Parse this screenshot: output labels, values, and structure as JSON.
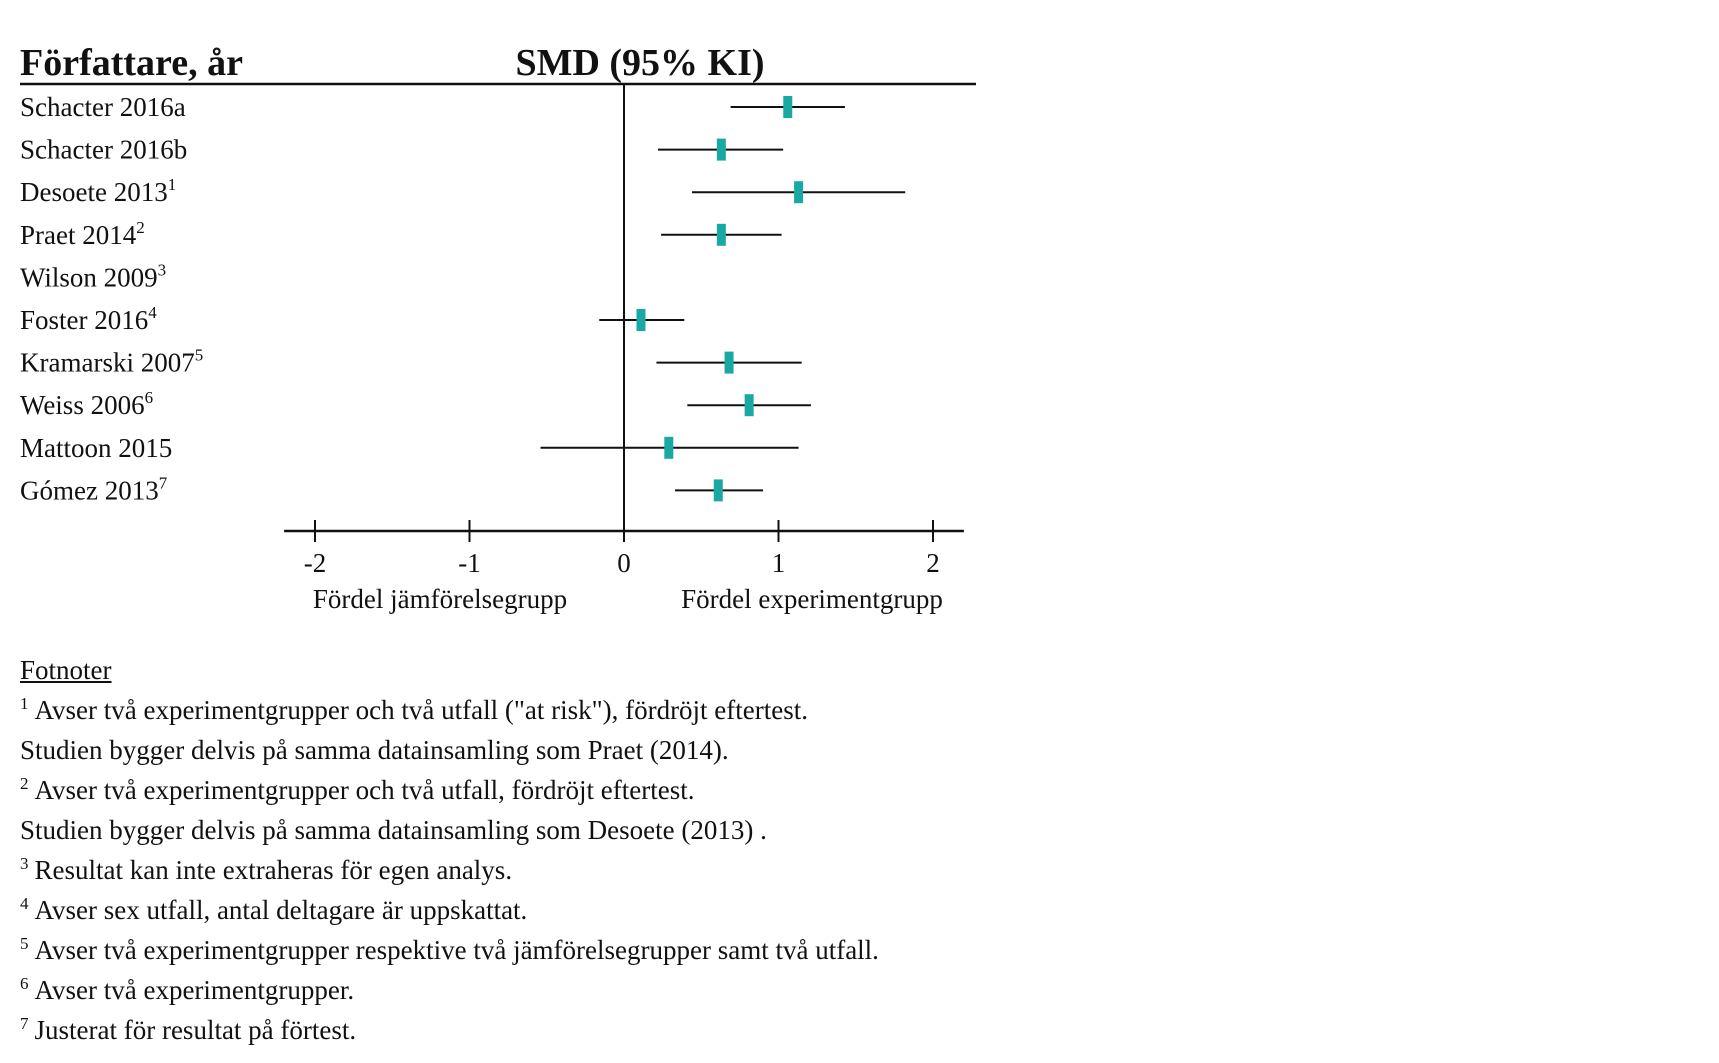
{
  "chart_data": {
    "type": "forest",
    "columns": {
      "study_header": "Författare, år",
      "effect_header": "SMD (95% KI)"
    },
    "studies": [
      {
        "name": "Schacter 2016a",
        "sup": "",
        "smd": 1.06,
        "ci": [
          0.69,
          1.43
        ]
      },
      {
        "name": "Schacter 2016b",
        "sup": "",
        "smd": 0.63,
        "ci": [
          0.22,
          1.03
        ]
      },
      {
        "name": "Desoete 2013",
        "sup": "1",
        "smd": 1.13,
        "ci": [
          0.44,
          1.82
        ]
      },
      {
        "name": "Praet 2014",
        "sup": "2",
        "smd": 0.63,
        "ci": [
          0.24,
          1.02
        ]
      },
      {
        "name": "Wilson 2009",
        "sup": "3",
        "smd": null,
        "ci": null
      },
      {
        "name": "Foster 2016",
        "sup": "4",
        "smd": 0.11,
        "ci": [
          -0.16,
          0.39
        ]
      },
      {
        "name": "Kramarski 2007",
        "sup": "5",
        "smd": 0.68,
        "ci": [
          0.21,
          1.15
        ]
      },
      {
        "name": "Weiss 2006",
        "sup": "6",
        "smd": 0.81,
        "ci": [
          0.41,
          1.21
        ]
      },
      {
        "name": "Mattoon 2015",
        "sup": "",
        "smd": 0.29,
        "ci": [
          -0.54,
          1.13
        ]
      },
      {
        "name": "Gómez 2013",
        "sup": "7",
        "smd": 0.61,
        "ci": [
          0.33,
          0.9
        ]
      }
    ],
    "xaxis": {
      "ticks": [
        -2,
        -1,
        0,
        1,
        2
      ],
      "tick_labels": [
        "-2",
        "-1",
        "0",
        "1",
        "2"
      ],
      "range": [
        -2.2,
        2.2
      ]
    },
    "direction_labels": {
      "left": "Fördel jämförelsegrupp",
      "right": "Fördel experimentgrupp"
    },
    "colors": {
      "marker": "#1aa9a2",
      "lines": "#111111"
    }
  },
  "footnotes": {
    "title": "Fotnoter",
    "lines": [
      {
        "num": "1",
        "text": "Avser två experimentgrupper och två utfall (\"at risk\"), fördröjt eftertest."
      },
      {
        "num": "",
        "text": "Studien bygger delvis på samma datainsamling som Praet (2014)."
      },
      {
        "num": "2",
        "text": "Avser två experimentgrupper och två utfall, fördröjt eftertest."
      },
      {
        "num": "",
        "text": "Studien bygger delvis på samma datainsamling som Desoete (2013) ."
      },
      {
        "num": "3",
        "text": "Resultat kan inte extraheras för egen analys."
      },
      {
        "num": "4",
        "text": "Avser sex utfall, antal deltagare är uppskattat."
      },
      {
        "num": "5",
        "text": "Avser två experimentgrupper respektive två jämförelsegrupper samt två utfall."
      },
      {
        "num": "6",
        "text": "Avser två experimentgrupper."
      },
      {
        "num": "7",
        "text": "Justerat för resultat på förtest."
      }
    ]
  }
}
